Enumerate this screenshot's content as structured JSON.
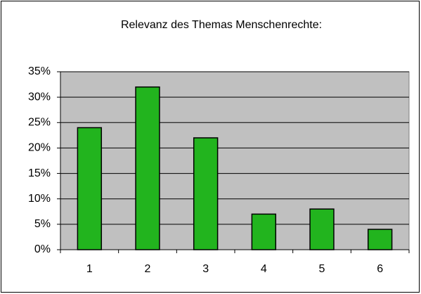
{
  "chart_data": {
    "type": "bar",
    "title": "Relevanz des Themas Menschenrechte:",
    "categories": [
      "1",
      "2",
      "3",
      "4",
      "5",
      "6"
    ],
    "values": [
      24,
      32,
      22,
      7,
      8,
      4
    ],
    "color": "#22b41e",
    "ylim": [
      0,
      35
    ],
    "yticks": [
      {
        "value": 0,
        "label": "0%"
      },
      {
        "value": 5,
        "label": "5%"
      },
      {
        "value": 10,
        "label": "10%"
      },
      {
        "value": 15,
        "label": "15%"
      },
      {
        "value": 20,
        "label": "20%"
      },
      {
        "value": 25,
        "label": "25%"
      },
      {
        "value": 30,
        "label": "30%"
      },
      {
        "value": 35,
        "label": "35%"
      }
    ],
    "grid": true
  }
}
